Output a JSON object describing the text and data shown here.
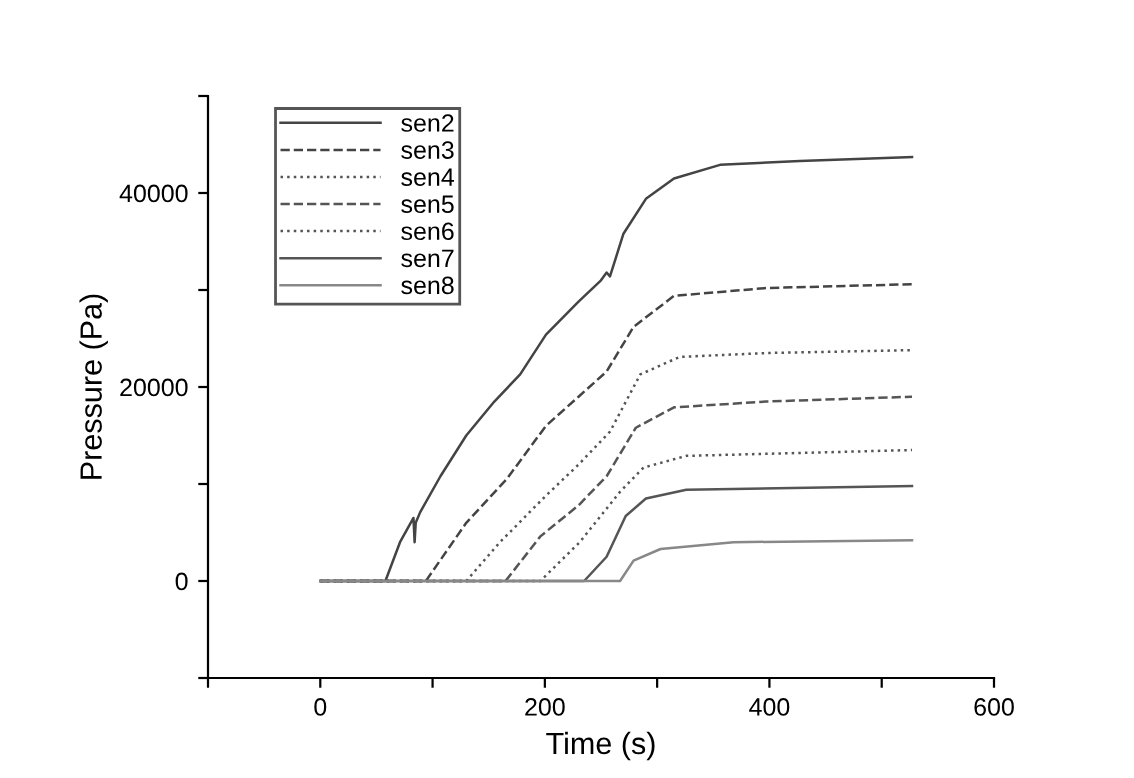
{
  "chart_data": {
    "type": "line",
    "xlabel": "Time (s)",
    "ylabel": "Pressure (Pa)",
    "xlim": [
      -100,
      600
    ],
    "xticks": [
      {
        "value": -100,
        "label": null
      },
      0,
      {
        "value": 100,
        "label": null
      },
      200,
      {
        "value": 300,
        "label": null
      },
      400,
      {
        "value": 500,
        "label": null
      },
      600
    ],
    "ylim": [
      -10000,
      50000
    ],
    "yticks": [
      {
        "value": -10000,
        "label": null
      },
      0,
      {
        "value": 10000,
        "label": null
      },
      20000,
      {
        "value": 30000,
        "label": null
      },
      40000,
      {
        "value": 50000,
        "label": null
      }
    ],
    "grid": false,
    "legend": "top left",
    "marker": "none",
    "series": [
      {
        "name": "sen2",
        "color": "#444444",
        "line_style": "solid",
        "x": [
          0,
          58,
          71,
          83,
          84,
          85,
          89,
          107,
          130,
          155,
          178,
          201,
          230,
          250,
          255,
          258,
          270,
          290,
          315,
          356,
          427,
          527
        ],
        "values": [
          0,
          0,
          4000,
          6500,
          4000,
          6000,
          7100,
          10800,
          15000,
          18500,
          21300,
          25400,
          28800,
          31000,
          31800,
          31400,
          35800,
          39400,
          41500,
          42900,
          43300,
          43700
        ]
      },
      {
        "name": "sen3",
        "color": "#444444",
        "line_style": "dashed",
        "x": [
          0,
          94,
          130,
          166,
          201,
          230,
          255,
          279,
          315,
          397,
          527
        ],
        "values": [
          0,
          0,
          6000,
          10500,
          16000,
          19000,
          21600,
          26200,
          29400,
          30200,
          30600
        ]
      },
      {
        "name": "sen4",
        "color": "#555555",
        "line_style": "dotted",
        "x": [
          0,
          130,
          160,
          201,
          230,
          258,
          285,
          320,
          397,
          527
        ],
        "values": [
          0,
          0,
          4000,
          8800,
          12000,
          15400,
          21300,
          23100,
          23500,
          23800
        ]
      },
      {
        "name": "sen5",
        "color": "#555555",
        "line_style": "dashed",
        "x": [
          0,
          165,
          196,
          230,
          255,
          281,
          315,
          397,
          527
        ],
        "values": [
          0,
          0,
          4600,
          7800,
          10800,
          15800,
          17900,
          18500,
          19000
        ]
      },
      {
        "name": "sen6",
        "color": "#555555",
        "line_style": "dotted",
        "x": [
          0,
          196,
          231,
          267,
          288,
          326,
          527
        ],
        "values": [
          0,
          0,
          4000,
          9200,
          11700,
          12900,
          13500
        ]
      },
      {
        "name": "sen7",
        "color": "#555555",
        "line_style": "solid",
        "x": [
          0,
          235,
          255,
          272,
          290,
          326,
          527
        ],
        "values": [
          0,
          0,
          2500,
          6700,
          8500,
          9400,
          9800
        ]
      },
      {
        "name": "sen8",
        "color": "#888888",
        "line_style": "solid",
        "x": [
          0,
          267,
          279,
          303,
          368,
          527
        ],
        "values": [
          0,
          0,
          2100,
          3300,
          4000,
          4200
        ]
      }
    ]
  }
}
